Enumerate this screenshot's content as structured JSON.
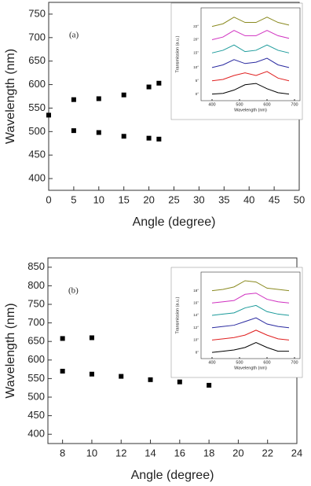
{
  "chart_data": [
    {
      "type": "scatter",
      "annotation": "(a)",
      "xlabel": "Angle (degree)",
      "ylabel": "Wavelength (nm)",
      "xlim": [
        0,
        50
      ],
      "xticks": [
        0,
        5,
        10,
        15,
        20,
        25,
        30,
        35,
        40,
        45,
        50
      ],
      "ylim": [
        375,
        775
      ],
      "yticks": [
        400,
        450,
        500,
        550,
        600,
        650,
        700,
        750
      ],
      "series": [
        {
          "color": "#000000",
          "x": [
            0,
            5,
            10,
            15,
            20,
            22
          ],
          "values": [
            535,
            568,
            570,
            578,
            595,
            603
          ]
        },
        {
          "color": "#000000",
          "x": [
            5,
            10,
            15,
            20,
            22
          ],
          "values": [
            502,
            498,
            490,
            486,
            484
          ]
        }
      ]
    },
    {
      "type": "line",
      "xlabel": "Wavelength (nm)",
      "ylabel": "Transmission (a.u.)",
      "xlim": [
        360,
        720
      ],
      "xticks": [
        400,
        500,
        600,
        700
      ],
      "ylim": [
        0,
        7
      ],
      "x": [
        400,
        440,
        480,
        520,
        560,
        600,
        640,
        680
      ],
      "series": [
        {
          "name": "0°",
          "color": "#000000",
          "values": [
            0.5,
            0.55,
            0.8,
            1.2,
            1.3,
            0.9,
            0.6,
            0.5
          ]
        },
        {
          "name": "5°",
          "color": "#e02020",
          "values": [
            1.5,
            1.6,
            1.9,
            2.1,
            1.9,
            2.2,
            1.7,
            1.5
          ]
        },
        {
          "name": "10°",
          "color": "#2a2aa0",
          "values": [
            2.5,
            2.7,
            3.1,
            2.8,
            2.9,
            3.2,
            2.7,
            2.5
          ]
        },
        {
          "name": "15°",
          "color": "#1a9a9a",
          "values": [
            3.6,
            3.8,
            4.2,
            3.7,
            3.8,
            4.2,
            3.8,
            3.6
          ]
        },
        {
          "name": "20°",
          "color": "#d030c0",
          "values": [
            4.6,
            4.8,
            5.3,
            4.9,
            4.9,
            5.3,
            4.9,
            4.7
          ]
        },
        {
          "name": "22°",
          "color": "#8a8a20",
          "values": [
            5.6,
            5.8,
            6.3,
            5.9,
            5.9,
            6.3,
            5.9,
            5.7
          ]
        }
      ]
    },
    {
      "type": "scatter",
      "annotation": "(b)",
      "xlabel": "Angle (degree)",
      "ylabel": "Wavelength (nm)",
      "xlim": [
        7,
        24
      ],
      "xticks": [
        8,
        10,
        12,
        14,
        16,
        18,
        20,
        22,
        24
      ],
      "ylim": [
        375,
        875
      ],
      "yticks": [
        400,
        450,
        500,
        550,
        600,
        650,
        700,
        750,
        800,
        850
      ],
      "series": [
        {
          "color": "#000000",
          "x": [
            8,
            10
          ],
          "values": [
            658,
            660
          ]
        },
        {
          "color": "#000000",
          "x": [
            8,
            10,
            12,
            14,
            16,
            18
          ],
          "values": [
            570,
            562,
            556,
            547,
            541,
            532
          ]
        }
      ]
    },
    {
      "type": "line",
      "xlabel": "Wavelength (nm)",
      "ylabel": "Transmission (a.u.)",
      "xlim": [
        360,
        720
      ],
      "xticks": [
        400,
        500,
        600,
        700
      ],
      "ylim": [
        0,
        7
      ],
      "x": [
        400,
        440,
        480,
        520,
        560,
        600,
        640,
        680
      ],
      "series": [
        {
          "name": "8°",
          "color": "#000000",
          "values": [
            0.5,
            0.6,
            0.7,
            0.9,
            1.3,
            0.9,
            0.6,
            0.6
          ]
        },
        {
          "name": "10°",
          "color": "#e02020",
          "values": [
            1.5,
            1.6,
            1.7,
            1.9,
            2.3,
            1.9,
            1.6,
            1.5
          ]
        },
        {
          "name": "12°",
          "color": "#2a2aa0",
          "values": [
            2.5,
            2.6,
            2.7,
            3.0,
            3.3,
            2.8,
            2.6,
            2.5
          ]
        },
        {
          "name": "14°",
          "color": "#1a9a9a",
          "values": [
            3.5,
            3.6,
            3.7,
            4.1,
            4.3,
            3.8,
            3.6,
            3.5
          ]
        },
        {
          "name": "16°",
          "color": "#d030c0",
          "values": [
            4.5,
            4.6,
            4.7,
            5.2,
            5.3,
            4.8,
            4.6,
            4.5
          ]
        },
        {
          "name": "18°",
          "color": "#8a8a20",
          "values": [
            5.5,
            5.6,
            5.8,
            6.3,
            6.2,
            5.7,
            5.6,
            5.5
          ]
        }
      ]
    }
  ]
}
